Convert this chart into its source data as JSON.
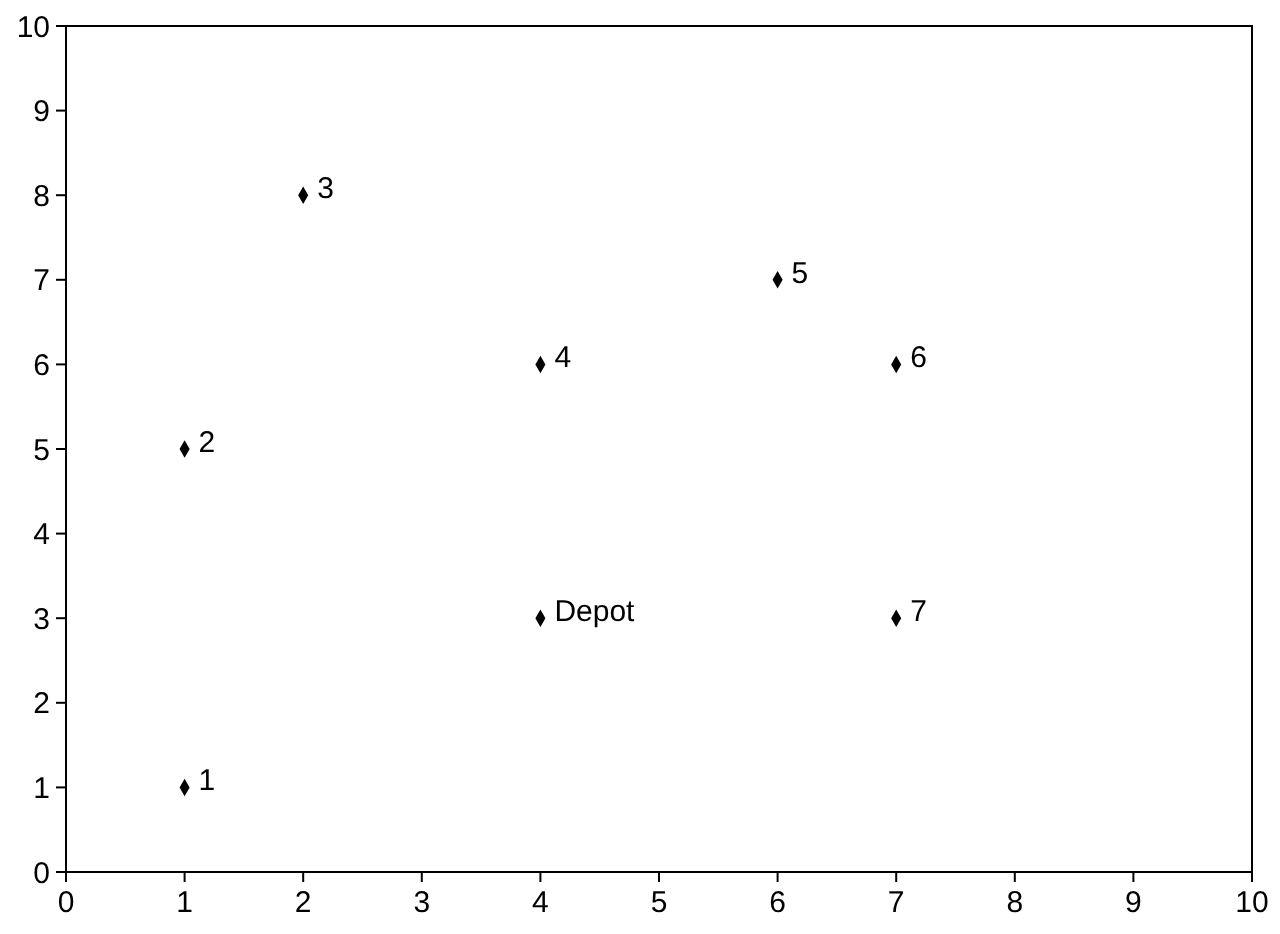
{
  "chart_data": {
    "type": "scatter",
    "x": [
      1,
      1,
      2,
      4,
      6,
      7,
      7,
      4
    ],
    "values": [
      1,
      5,
      8,
      6,
      7,
      6,
      3,
      3
    ],
    "color": "#000000",
    "marker": "diamond",
    "xlim": [
      0,
      10
    ],
    "xticks": [
      0,
      1,
      2,
      3,
      4,
      5,
      6,
      7,
      8,
      9,
      10
    ],
    "ylim": [
      0,
      10
    ],
    "yticks": [
      0,
      1,
      2,
      3,
      4,
      5,
      6,
      7,
      8,
      9,
      10
    ],
    "grid": false,
    "annotations": [
      {
        "text": "1",
        "x": 1,
        "y": 1
      },
      {
        "text": "2",
        "x": 1,
        "y": 5
      },
      {
        "text": "3",
        "x": 2,
        "y": 8
      },
      {
        "text": "4",
        "x": 4,
        "y": 6
      },
      {
        "text": "5",
        "x": 6,
        "y": 7
      },
      {
        "text": "6",
        "x": 7,
        "y": 6
      },
      {
        "text": "7",
        "x": 7,
        "y": 3
      },
      {
        "text": "Depot",
        "x": 4,
        "y": 3
      }
    ]
  }
}
